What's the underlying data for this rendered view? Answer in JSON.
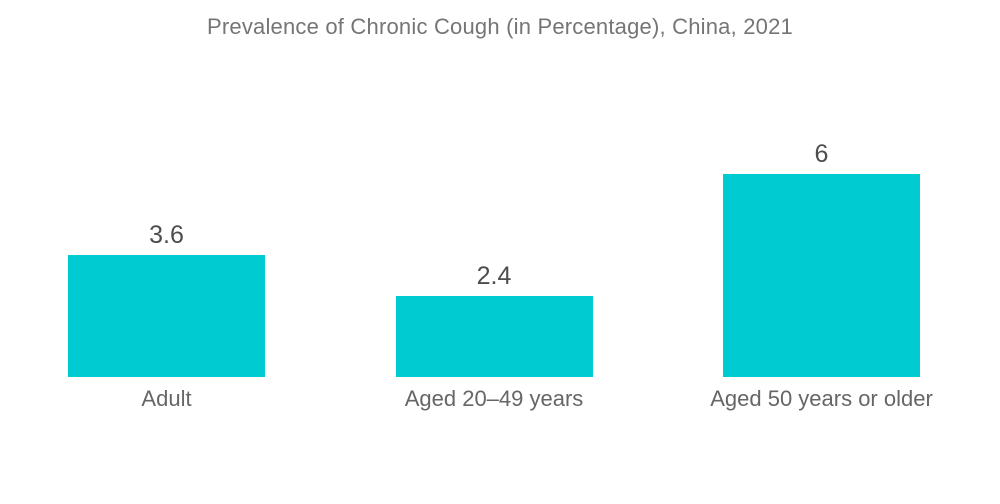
{
  "chart_data": {
    "type": "bar",
    "title": "Prevalence of Chronic Cough (in Percentage), China, 2021",
    "categories": [
      "Adult",
      "Aged 20–49 years",
      "Aged 50 years or older"
    ],
    "values": [
      3.6,
      2.4,
      6
    ],
    "xlabel": "",
    "ylabel": "",
    "ylim": [
      0,
      6
    ],
    "grid": false,
    "legend_position": "none",
    "value_labels_shown": true,
    "background_color": "#FFFFFF",
    "bar_color": "#00CBD1",
    "title_color": "#757575",
    "value_label_color": "#4D4D4D",
    "category_label_color": "#666666"
  }
}
